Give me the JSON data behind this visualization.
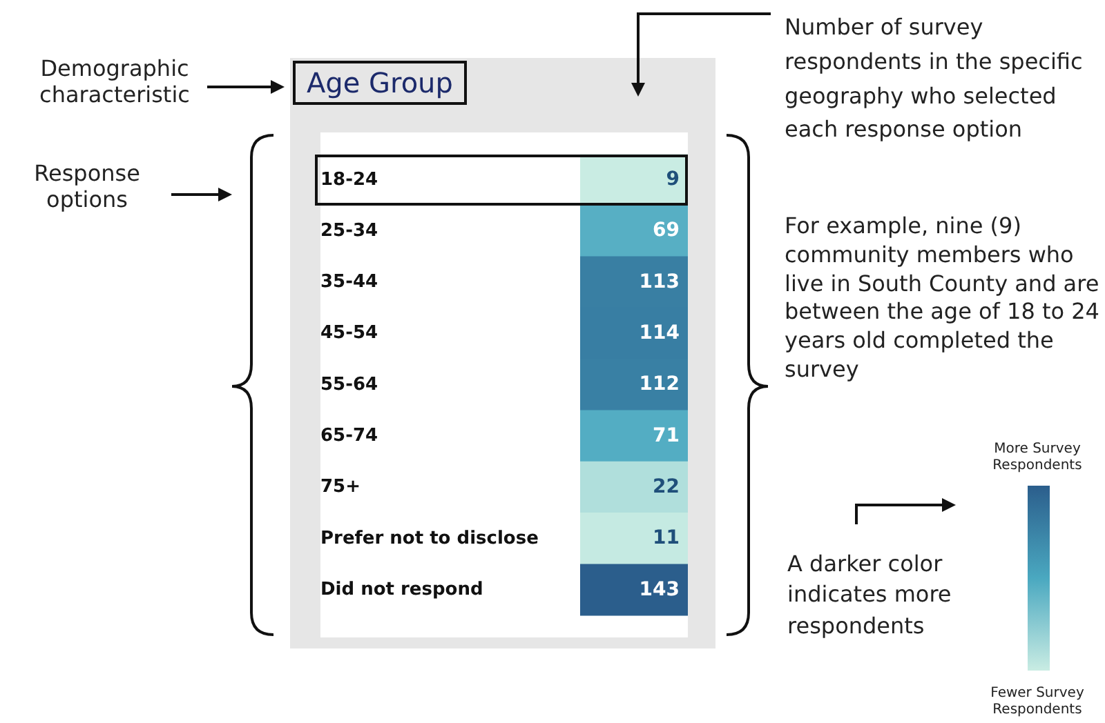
{
  "chart_data": {
    "type": "heatmap",
    "title": "Age Group",
    "categories": [
      null
    ],
    "y_categories": [
      "18-24",
      "25-34",
      "35-44",
      "45-54",
      "55-64",
      "65-74",
      "75+",
      "Prefer not to disclose",
      "Did not respond"
    ],
    "cells": [
      [
        9
      ],
      [
        69
      ],
      [
        113
      ],
      [
        114
      ],
      [
        112
      ],
      [
        71
      ],
      [
        22
      ],
      [
        11
      ],
      [
        143
      ]
    ],
    "data_labels": true,
    "annotations": [
      "Demographic characteristic",
      "Response options",
      "Number of survey respondents in the specific geography who selected each response option",
      "For example, nine (9) community members who live in South County and are between the age of 18 to 24 years old completed the survey",
      "More Survey Respondents",
      "Fewer Survey Respondents",
      "A darker color indicates more respondents"
    ]
  }
}
